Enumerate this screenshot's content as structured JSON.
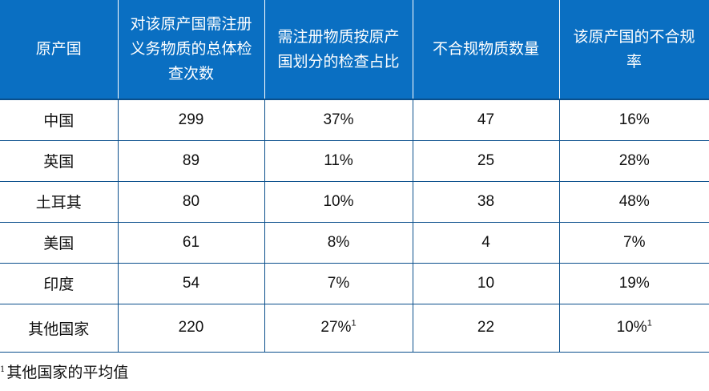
{
  "table": {
    "headers": [
      "原产国",
      "对该原产国需注册义务物质的总体检查次数",
      "需注册物质按原产国划分的检查占比",
      "不合规物质数量",
      "该原产国的不合规率"
    ],
    "rows": [
      {
        "country": "中国",
        "inspections": "299",
        "share": "37%",
        "share_note": "",
        "noncompliant": "47",
        "rate": "16%",
        "rate_note": ""
      },
      {
        "country": "英国",
        "inspections": "89",
        "share": "11%",
        "share_note": "",
        "noncompliant": "25",
        "rate": "28%",
        "rate_note": ""
      },
      {
        "country": "土耳其",
        "inspections": "80",
        "share": "10%",
        "share_note": "",
        "noncompliant": "38",
        "rate": "48%",
        "rate_note": ""
      },
      {
        "country": "美国",
        "inspections": "61",
        "share": "8%",
        "share_note": "",
        "noncompliant": "4",
        "rate": "7%",
        "rate_note": ""
      },
      {
        "country": "印度",
        "inspections": "54",
        "share": "7%",
        "share_note": "",
        "noncompliant": "10",
        "rate": "19%",
        "rate_note": ""
      },
      {
        "country": "其他国家",
        "inspections": "220",
        "share": "27%",
        "share_note": "1",
        "noncompliant": "22",
        "rate": "10%",
        "rate_note": "1"
      }
    ]
  },
  "footnote": {
    "marker": "1",
    "text": "其他国家的平均值"
  },
  "colors": {
    "header_bg": "#0a6fc2",
    "border": "#0a4f8c",
    "header_text": "#ffffff",
    "body_text": "#111111"
  }
}
